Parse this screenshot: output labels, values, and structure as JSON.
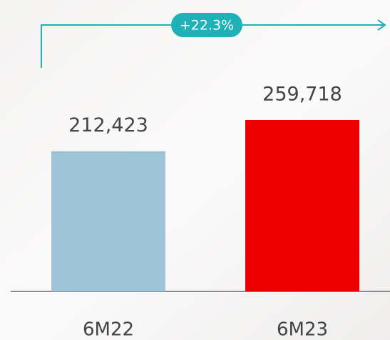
{
  "chart_data": {
    "type": "bar",
    "annotation": "+22.3%",
    "categories": [
      "6M22",
      "6M23"
    ],
    "values": [
      212423,
      259718
    ],
    "value_labels": [
      "212,423",
      "259,718"
    ],
    "colors": [
      "#9dc3d6",
      "#ec0000"
    ]
  }
}
